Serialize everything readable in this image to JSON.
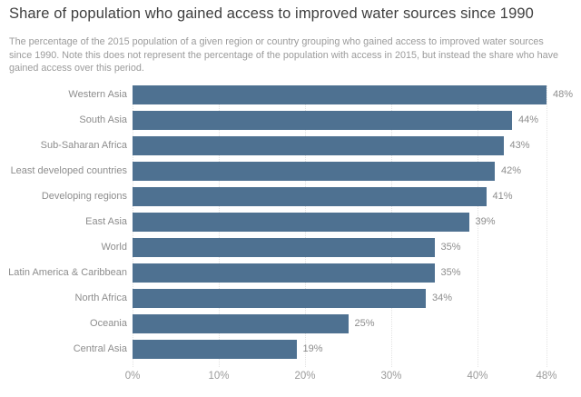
{
  "chart_data": {
    "type": "bar",
    "orientation": "horizontal",
    "title": "Share of population who gained access to improved water sources since 1990",
    "subtitle_lines": [
      "The percentage of the 2015 population of a given region or country grouping who gained access to improved water sources",
      "since 1990. Note this does not represent the percentage of the population with access in 2015, but instead the share who have",
      "gained access over this period."
    ],
    "categories": [
      "Western Asia",
      "South Asia",
      "Sub-Saharan Africa",
      "Least developed countries",
      "Developing regions",
      "East Asia",
      "World",
      "Latin America & Caribbean",
      "North Africa",
      "Oceania",
      "Central Asia"
    ],
    "values": [
      48,
      44,
      43,
      42,
      41,
      39,
      35,
      35,
      34,
      25,
      19
    ],
    "value_labels": [
      "48%",
      "44%",
      "43%",
      "42%",
      "41%",
      "39%",
      "35%",
      "35%",
      "34%",
      "25%",
      "19%"
    ],
    "xlabel": "",
    "ylabel": "",
    "xlim": [
      0,
      48
    ],
    "x_ticks": [
      0,
      10,
      20,
      30,
      40,
      48
    ],
    "x_tick_labels": [
      "0%",
      "10%",
      "20%",
      "30%",
      "40%",
      "48%"
    ],
    "grid": "vertical-dotted",
    "legend": "none",
    "bar_color": "#4e7191"
  },
  "colors": {
    "background": "#ffffff",
    "bar": "#4e7191",
    "title_text": "#3e3e3e",
    "subtitle_text": "#9b9b9b",
    "label_text": "#8d8d8d",
    "tick_text": "#9a9a9a",
    "gridline": "#e3e3e3"
  }
}
